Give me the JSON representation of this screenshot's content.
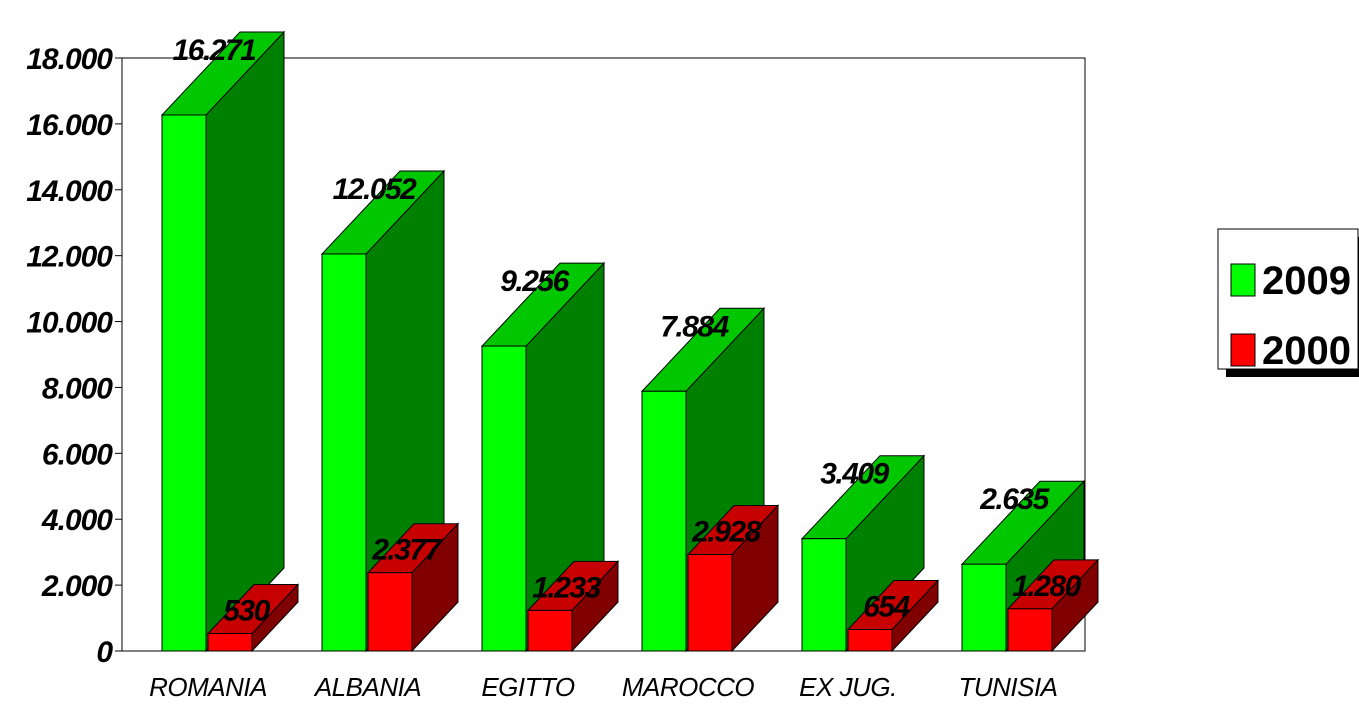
{
  "chart_data": {
    "type": "bar",
    "categories": [
      "ROMANIA",
      "ALBANIA",
      "EGITTO",
      "MAROCCO",
      "EX JUG.",
      "TUNISIA"
    ],
    "series": [
      {
        "name": "2009",
        "values": [
          16271,
          12052,
          9256,
          7884,
          3409,
          2635
        ],
        "labels": [
          "16.271",
          "12.052",
          "9.256",
          "7.884",
          "3.409",
          "2.635"
        ],
        "color": "#00ff00"
      },
      {
        "name": "2000",
        "values": [
          530,
          2377,
          1233,
          2928,
          654,
          1280
        ],
        "labels": [
          "530",
          "2.377",
          "1.233",
          "2.928",
          "654",
          "1.280"
        ],
        "color": "#ff0000"
      }
    ],
    "yticks": [
      {
        "value": 0,
        "label": "0"
      },
      {
        "value": 2000,
        "label": "2.000"
      },
      {
        "value": 4000,
        "label": "4.000"
      },
      {
        "value": 6000,
        "label": "6.000"
      },
      {
        "value": 8000,
        "label": "8.000"
      },
      {
        "value": 10000,
        "label": "10.000"
      },
      {
        "value": 12000,
        "label": "12.000"
      },
      {
        "value": 14000,
        "label": "14.000"
      },
      {
        "value": 16000,
        "label": "16.000"
      },
      {
        "value": 18000,
        "label": "18.000"
      }
    ],
    "ylim": [
      0,
      18000
    ],
    "grid": false,
    "style": "3d",
    "legend_position": "right",
    "title": "",
    "xlabel": "",
    "ylabel": ""
  }
}
